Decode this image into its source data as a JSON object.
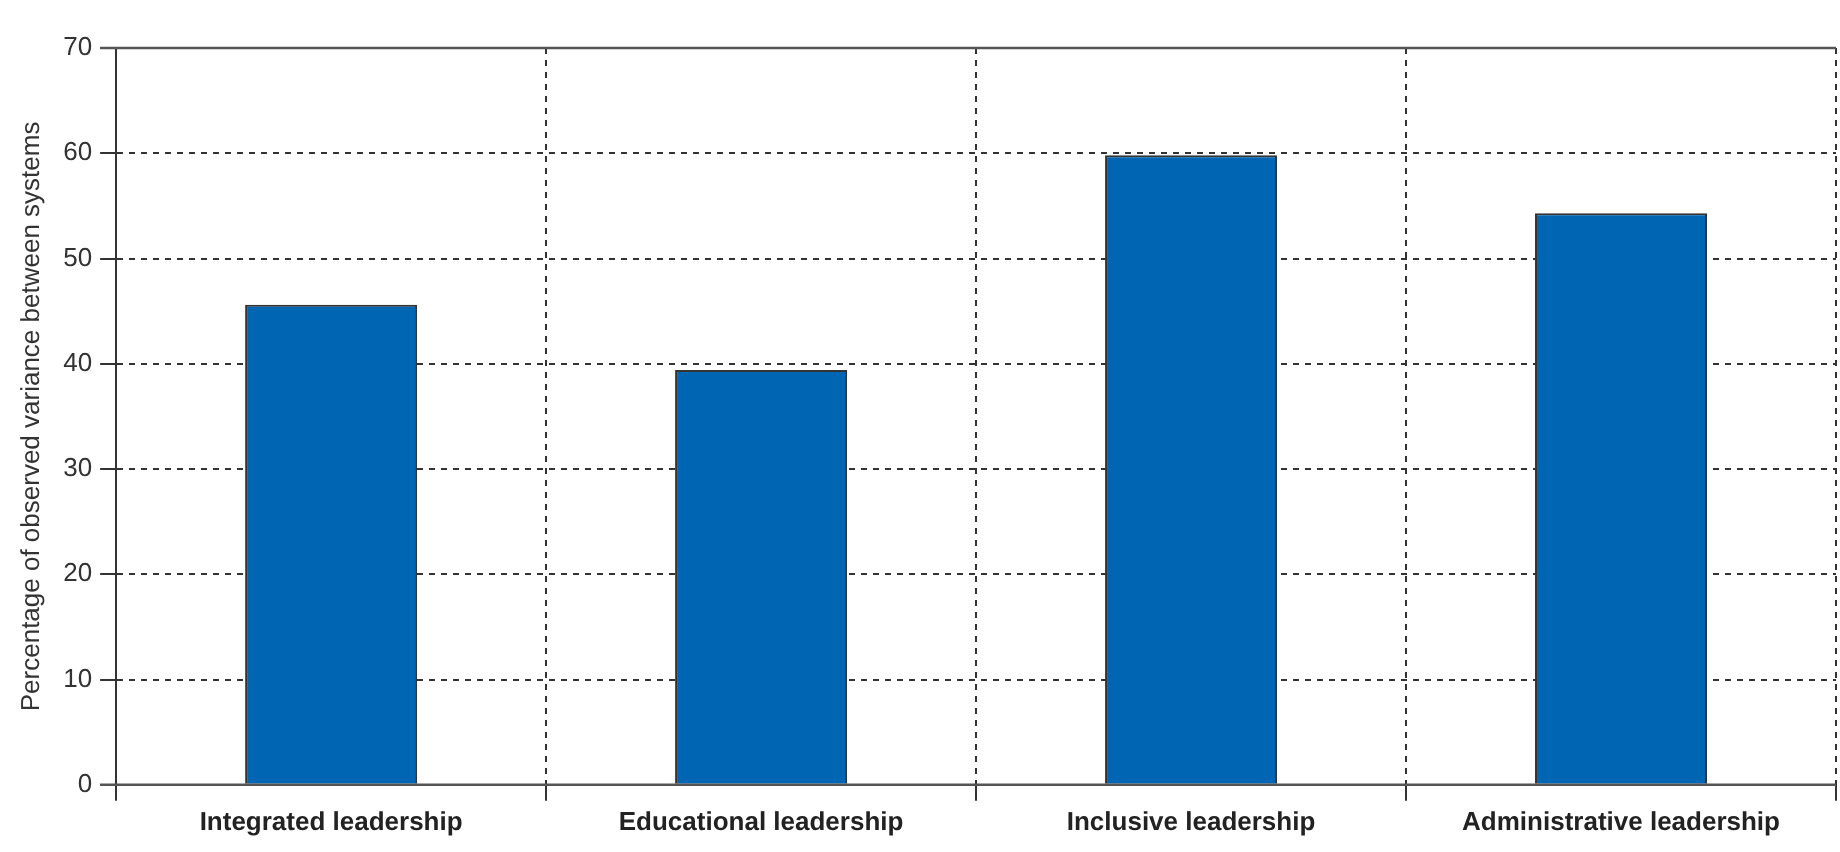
{
  "chart_data": {
    "type": "bar",
    "ylabel": "Percentage of observed variance between systems",
    "categories": [
      "Integrated leadership",
      "Educational leadership",
      "Inclusive leadership",
      "Administrative leadership"
    ],
    "values": [
      45.6,
      39.4,
      59.8,
      54.3
    ],
    "color": "#0066b3",
    "ylim": [
      0,
      70
    ],
    "yticks": [
      0,
      10,
      20,
      30,
      40,
      50,
      60,
      70
    ],
    "grid": true,
    "legend": false
  }
}
